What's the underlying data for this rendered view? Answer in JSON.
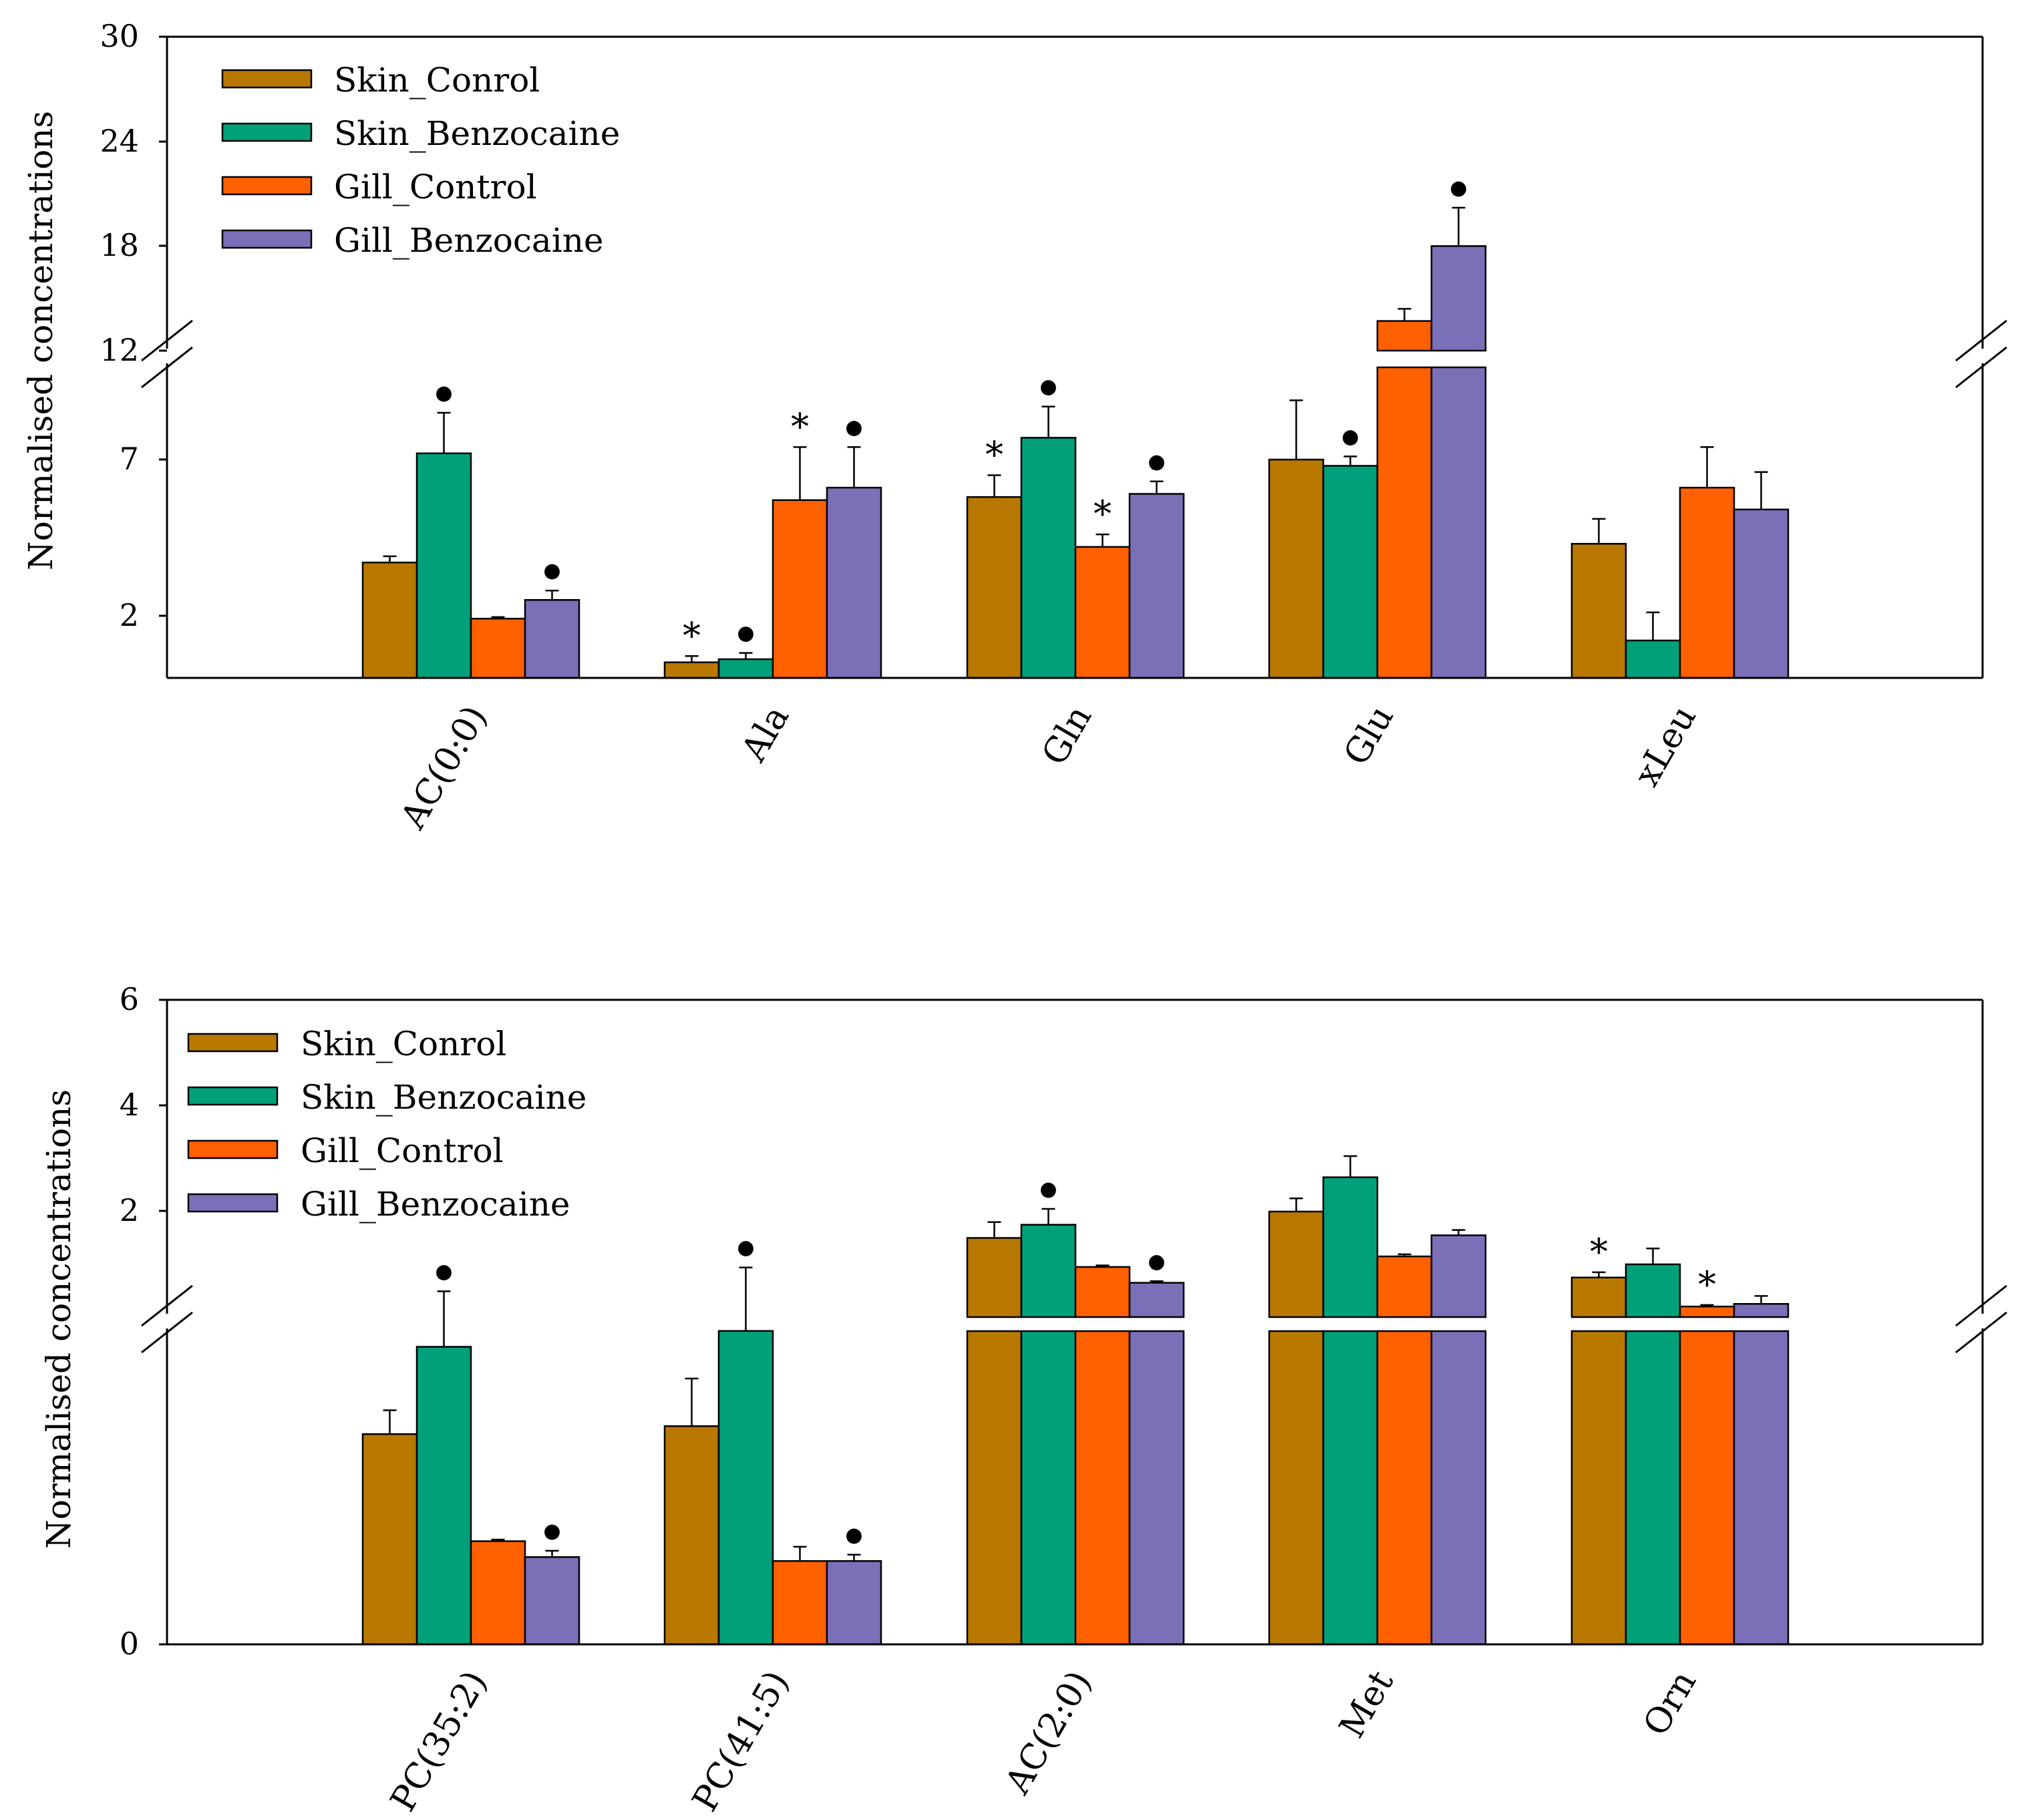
{
  "legend": [
    "Skin_Conrol",
    "Skin_Benzocaine",
    "Gill_Control",
    "Gill_Benzocaine"
  ],
  "colors": [
    "#b87800",
    "#00a07a",
    "#ff6000",
    "#7a70b8"
  ],
  "chart_data": [
    {
      "type": "bar",
      "panel": "top",
      "ylabel": "Normalised concentrations",
      "y_ticks": [
        "30",
        "24",
        "18",
        "12",
        "7",
        "2"
      ],
      "y_break": [
        11,
        12
      ],
      "ylim": [
        0,
        30
      ],
      "legend_position": "top-left",
      "categories": [
        "AC(0:0)",
        "Ala",
        "Gln",
        "Glu",
        "xLeu"
      ],
      "series": [
        {
          "name": "Skin_Conrol",
          "values": [
            3.7,
            0.5,
            5.8,
            7.0,
            4.3
          ],
          "errors": [
            0.2,
            0.2,
            0.7,
            1.9,
            0.8
          ]
        },
        {
          "name": "Skin_Benzocaine",
          "values": [
            7.2,
            0.6,
            7.7,
            6.8,
            1.2
          ],
          "errors": [
            1.3,
            0.2,
            1.0,
            0.3,
            0.9
          ]
        },
        {
          "name": "Gill_Control",
          "values": [
            1.9,
            5.7,
            4.2,
            13.7,
            6.1
          ],
          "errors": [
            0.05,
            1.7,
            0.4,
            0.7,
            1.3
          ]
        },
        {
          "name": "Gill_Benzocaine",
          "values": [
            2.5,
            6.1,
            5.9,
            18.0,
            5.4
          ],
          "errors": [
            0.3,
            1.3,
            0.4,
            2.2,
            1.2
          ]
        }
      ],
      "annotations": [
        {
          "category": 0,
          "series": 1,
          "symbol": "●"
        },
        {
          "category": 0,
          "series": 3,
          "symbol": "●"
        },
        {
          "category": 1,
          "series": 0,
          "symbol": "*"
        },
        {
          "category": 1,
          "series": 1,
          "symbol": "●"
        },
        {
          "category": 1,
          "series": 2,
          "symbol": "*"
        },
        {
          "category": 1,
          "series": 3,
          "symbol": "●"
        },
        {
          "category": 2,
          "series": 0,
          "symbol": "*"
        },
        {
          "category": 2,
          "series": 1,
          "symbol": "●"
        },
        {
          "category": 2,
          "series": 2,
          "symbol": "*"
        },
        {
          "category": 2,
          "series": 3,
          "symbol": "●"
        },
        {
          "category": 3,
          "series": 1,
          "symbol": "●"
        },
        {
          "category": 3,
          "series": 3,
          "symbol": "●"
        }
      ]
    },
    {
      "type": "bar",
      "panel": "bottom",
      "ylabel": "Normalised concentrations",
      "y_ticks": [
        "6",
        "4",
        "2",
        "0"
      ],
      "ylim": [
        0,
        6
      ],
      "legend_position": "top-left",
      "categories": [
        "PC(35:2)",
        "PC(41:5)",
        "AC(2:0)",
        "Met",
        "Orn"
      ],
      "series": [
        {
          "name": "Skin_Conrol",
          "values": [
            0.053,
            0.055,
            1.5,
            2.0,
            0.75
          ],
          "errors": [
            0.006,
            0.012,
            0.3,
            0.25,
            0.1
          ]
        },
        {
          "name": "Skin_Benzocaine",
          "values": [
            0.075,
            0.079,
            1.75,
            2.65,
            1.0
          ],
          "errors": [
            0.014,
            0.016,
            0.3,
            0.4,
            0.3
          ]
        },
        {
          "name": "Gill_Control",
          "values": [
            0.026,
            0.021,
            0.95,
            1.15,
            0.2
          ],
          "errors": [
            0.0004,
            0.0036,
            0.03,
            0.04,
            0.03
          ]
        },
        {
          "name": "Gill_Benzocaine",
          "values": [
            0.022,
            0.021,
            0.65,
            1.55,
            0.25
          ],
          "errors": [
            0.0016,
            0.0016,
            0.03,
            0.1,
            0.15
          ]
        }
      ],
      "annotations": [
        {
          "category": 0,
          "series": 1,
          "symbol": "●"
        },
        {
          "category": 0,
          "series": 3,
          "symbol": "●"
        },
        {
          "category": 1,
          "series": 1,
          "symbol": "●"
        },
        {
          "category": 1,
          "series": 3,
          "symbol": "●"
        },
        {
          "category": 2,
          "series": 1,
          "symbol": "●"
        },
        {
          "category": 2,
          "series": 3,
          "symbol": "●"
        },
        {
          "category": 4,
          "series": 0,
          "symbol": "*"
        },
        {
          "category": 4,
          "series": 2,
          "symbol": "*"
        }
      ]
    }
  ]
}
